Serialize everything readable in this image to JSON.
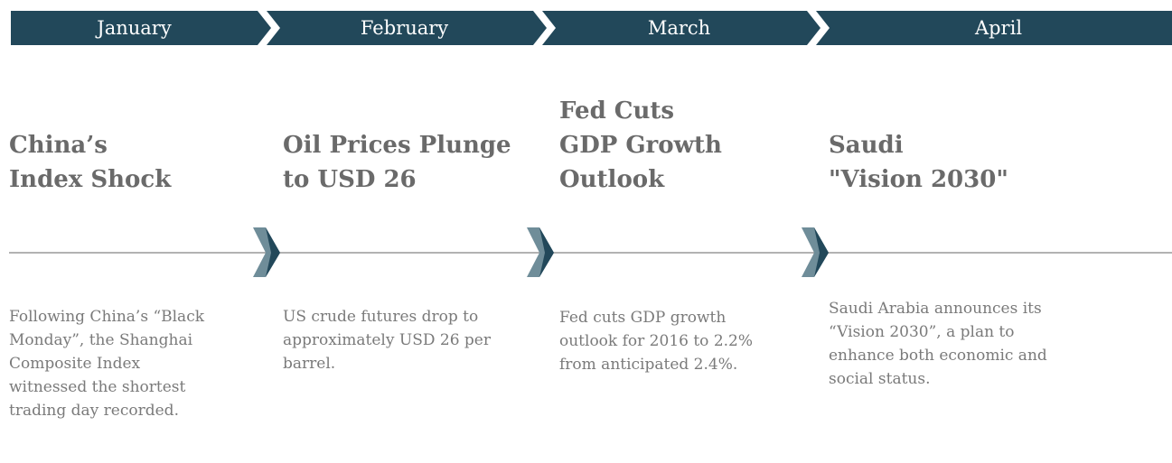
{
  "timeline": [
    {
      "month": "January",
      "title": [
        "China’s",
        "Index Shock"
      ],
      "text": "Following China’s “Black Monday”, the Shanghai Composite Index witnessed the shortest trading day recorded."
    },
    {
      "month": "February",
      "title": [
        "Oil Prices Plunge",
        "to USD 26"
      ],
      "text": "US crude futures drop to approximately USD 26 per barrel."
    },
    {
      "month": "March",
      "title": [
        "Fed Cuts",
        "GDP Growth",
        "Outlook"
      ],
      "text": "Fed cuts GDP growth outlook for 2016 to 2.2% from anticipated 2.4%."
    },
    {
      "month": "April",
      "title": [
        "Saudi",
        "\"Vision 2030\""
      ],
      "text": "Saudi Arabia announces its “Vision 2030”, a plan to enhance both economic and social status."
    }
  ]
}
